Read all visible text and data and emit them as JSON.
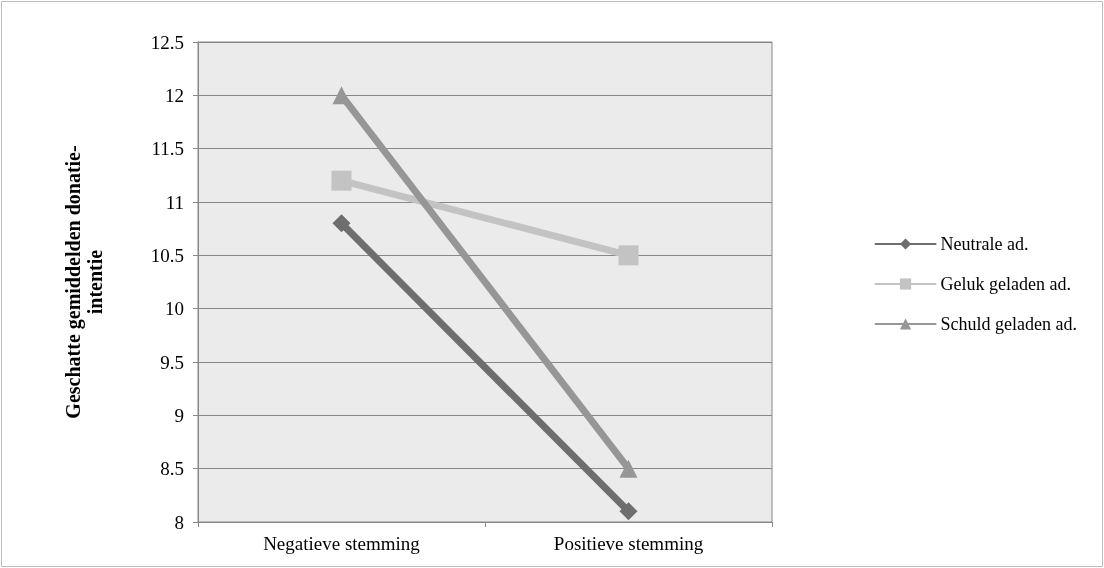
{
  "chart_data": {
    "type": "line",
    "ylabel": "Geschatte gemiddelden donatie-intentie",
    "categories": [
      "Negatieve stemming",
      "Positieve stemming"
    ],
    "series": [
      {
        "name": "Neutrale ad.",
        "color": "#6e6e6e",
        "marker": "diamond",
        "values": [
          10.8,
          8.1
        ]
      },
      {
        "name": "Geluk geladen ad.",
        "color": "#c3c3c3",
        "marker": "square",
        "values": [
          11.2,
          10.5
        ]
      },
      {
        "name": "Schuld geladen ad.",
        "color": "#969696",
        "marker": "triangle",
        "values": [
          12,
          8.5
        ]
      }
    ],
    "ylim": [
      8,
      12.5
    ],
    "yticks": [
      8,
      8.5,
      9,
      9.5,
      10,
      10.5,
      11,
      11.5,
      12,
      12.5
    ],
    "grid": "y",
    "legend": "right",
    "line_style": "solid"
  }
}
